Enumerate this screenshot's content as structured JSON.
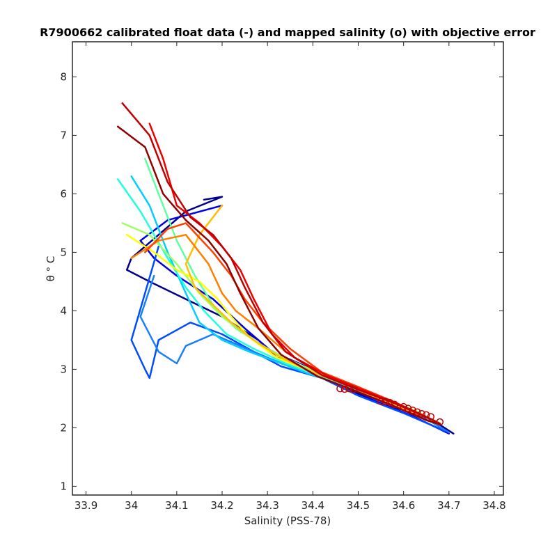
{
  "chart_data": {
    "type": "line",
    "title": "R7900662 calibrated float data (-) and mapped salinity (o) with objective error",
    "xlabel": "Salinity (PSS-78)",
    "ylabel": "θ ° C",
    "xlim": [
      33.87,
      34.82
    ],
    "ylim": [
      0.85,
      8.6
    ],
    "x_ticks": [
      "33.9",
      "34",
      "34.1",
      "34.2",
      "34.3",
      "34.4",
      "34.5",
      "34.6",
      "34.7",
      "34.8"
    ],
    "y_ticks": [
      "1",
      "2",
      "3",
      "4",
      "5",
      "6",
      "7",
      "8"
    ],
    "grid": false,
    "legend": "none",
    "colormap": "jet",
    "series": [
      {
        "color": "#00008f",
        "x": [
          34.16,
          34.2,
          34.12,
          34.06,
          34.0,
          33.99,
          34.04,
          34.12,
          34.2,
          34.28,
          34.32,
          34.36,
          34.42,
          34.52,
          34.6,
          34.68,
          34.71
        ],
        "y": [
          5.9,
          5.95,
          5.7,
          5.3,
          4.9,
          4.7,
          4.5,
          4.2,
          3.9,
          3.5,
          3.2,
          3.1,
          2.9,
          2.5,
          2.3,
          2.05,
          1.9
        ]
      },
      {
        "color": "#0000ee",
        "x": [
          34.2,
          34.08,
          34.02,
          34.05,
          34.1,
          34.18,
          34.25,
          34.31,
          34.37,
          34.45,
          34.54,
          34.62,
          34.7
        ],
        "y": [
          5.8,
          5.55,
          5.2,
          4.9,
          4.6,
          4.2,
          3.7,
          3.3,
          3.1,
          2.8,
          2.45,
          2.2,
          1.9
        ]
      },
      {
        "color": "#004dff",
        "x": [
          34.06,
          34.0,
          34.03,
          34.04,
          34.06,
          34.13,
          34.2,
          34.27,
          34.33,
          34.42,
          34.5,
          34.6,
          34.69
        ],
        "y": [
          5.1,
          3.5,
          3.0,
          2.85,
          3.5,
          3.8,
          3.6,
          3.3,
          3.05,
          2.85,
          2.55,
          2.25,
          1.95
        ]
      },
      {
        "color": "#1a7fff",
        "x": [
          34.05,
          34.02,
          34.06,
          34.1,
          34.12,
          34.18,
          34.24,
          34.3,
          34.38,
          34.46,
          34.55,
          34.64,
          34.7
        ],
        "y": [
          4.6,
          3.9,
          3.3,
          3.1,
          3.4,
          3.6,
          3.4,
          3.2,
          2.95,
          2.75,
          2.45,
          2.2,
          1.92
        ]
      },
      {
        "color": "#00cfff",
        "x": [
          34.0,
          34.04,
          34.08,
          34.12,
          34.15,
          34.2,
          34.26,
          34.33,
          34.4,
          34.48,
          34.57,
          34.66
        ],
        "y": [
          6.3,
          5.8,
          5.0,
          4.3,
          3.8,
          3.5,
          3.3,
          3.1,
          2.9,
          2.7,
          2.42,
          2.15
        ]
      },
      {
        "color": "#20ffdf",
        "x": [
          33.97,
          34.02,
          34.08,
          34.12,
          34.16,
          34.21,
          34.27,
          34.34,
          34.42,
          34.5,
          34.6,
          34.67
        ],
        "y": [
          6.25,
          5.7,
          4.9,
          4.4,
          4.0,
          3.6,
          3.35,
          3.1,
          2.88,
          2.65,
          2.35,
          2.1
        ]
      },
      {
        "color": "#60ff9f",
        "x": [
          34.03,
          34.06,
          34.1,
          34.14,
          34.18,
          34.23,
          34.29,
          34.36,
          34.44,
          34.52,
          34.62,
          34.68
        ],
        "y": [
          6.6,
          6.0,
          5.2,
          4.6,
          4.1,
          3.7,
          3.4,
          3.1,
          2.85,
          2.6,
          2.3,
          2.08
        ]
      },
      {
        "color": "#9fff60",
        "x": [
          33.98,
          34.04,
          34.1,
          34.15,
          34.2,
          34.25,
          34.31,
          34.38,
          34.45,
          34.53,
          34.63,
          34.68
        ],
        "y": [
          5.5,
          5.3,
          4.8,
          4.3,
          3.9,
          3.6,
          3.3,
          3.05,
          2.82,
          2.58,
          2.28,
          2.06
        ]
      },
      {
        "color": "#ffff00",
        "x": [
          33.99,
          34.05,
          34.1,
          34.15,
          34.19,
          34.22,
          34.26,
          34.32,
          34.39,
          34.47,
          34.55,
          34.64,
          34.68
        ],
        "y": [
          5.3,
          5.0,
          4.7,
          4.5,
          4.2,
          3.9,
          3.55,
          3.2,
          2.98,
          2.75,
          2.48,
          2.22,
          2.07
        ]
      },
      {
        "color": "#ffbf00",
        "x": [
          34.2,
          34.15,
          34.12,
          34.14,
          34.18,
          34.22,
          34.27,
          34.33,
          34.4,
          34.48,
          34.56,
          34.65,
          34.68
        ],
        "y": [
          5.8,
          5.3,
          4.8,
          4.4,
          4.1,
          3.8,
          3.5,
          3.2,
          2.95,
          2.72,
          2.45,
          2.18,
          2.06
        ]
      },
      {
        "color": "#ff8000",
        "x": [
          34.0,
          34.06,
          34.12,
          34.17,
          34.2,
          34.23,
          34.28,
          34.34,
          34.41,
          34.49,
          34.57,
          34.65,
          34.68
        ],
        "y": [
          4.9,
          5.2,
          5.3,
          4.8,
          4.3,
          4.0,
          3.7,
          3.3,
          2.95,
          2.72,
          2.45,
          2.18,
          2.07
        ]
      },
      {
        "color": "#ff4000",
        "x": [
          34.03,
          34.08,
          34.12,
          34.18,
          34.22,
          34.25,
          34.29,
          34.35,
          34.42,
          34.5,
          34.58,
          34.66,
          34.68
        ],
        "y": [
          5.0,
          5.4,
          5.5,
          5.0,
          4.6,
          4.2,
          3.8,
          3.35,
          2.95,
          2.7,
          2.44,
          2.15,
          2.07
        ]
      },
      {
        "color": "#ef0000",
        "x": [
          34.04,
          34.07,
          34.1,
          34.15,
          34.2,
          34.24,
          34.27,
          34.31,
          34.36,
          34.43,
          34.51,
          34.59,
          34.66,
          34.68
        ],
        "y": [
          7.2,
          6.6,
          5.8,
          5.5,
          5.1,
          4.7,
          4.2,
          3.6,
          3.2,
          2.9,
          2.65,
          2.4,
          2.15,
          2.07
        ]
      },
      {
        "color": "#c00000",
        "x": [
          33.98,
          34.04,
          34.08,
          34.13,
          34.18,
          34.22,
          34.25,
          34.29,
          34.34,
          34.42,
          34.5,
          34.58,
          34.66,
          34.68
        ],
        "y": [
          7.55,
          7.0,
          6.2,
          5.6,
          5.3,
          4.9,
          4.4,
          3.8,
          3.3,
          2.9,
          2.65,
          2.42,
          2.15,
          2.07
        ]
      },
      {
        "color": "#8f0000",
        "x": [
          33.97,
          34.03,
          34.07,
          34.12,
          34.17,
          34.21,
          34.24,
          34.28,
          34.33,
          34.41,
          34.49,
          34.57,
          34.65,
          34.68
        ],
        "y": [
          7.15,
          6.8,
          6.0,
          5.55,
          5.2,
          4.8,
          4.3,
          3.7,
          3.25,
          2.88,
          2.64,
          2.4,
          2.13,
          2.06
        ]
      }
    ],
    "mapped_points": {
      "color": "#c00000",
      "x": [
        34.46,
        34.47,
        34.48,
        34.49,
        34.55,
        34.56,
        34.57,
        34.58,
        34.6,
        34.61,
        34.62,
        34.63,
        34.64,
        34.65,
        34.66,
        34.68
      ],
      "y": [
        2.67,
        2.66,
        2.67,
        2.66,
        2.45,
        2.45,
        2.43,
        2.4,
        2.36,
        2.33,
        2.3,
        2.27,
        2.24,
        2.22,
        2.19,
        2.1
      ]
    }
  }
}
